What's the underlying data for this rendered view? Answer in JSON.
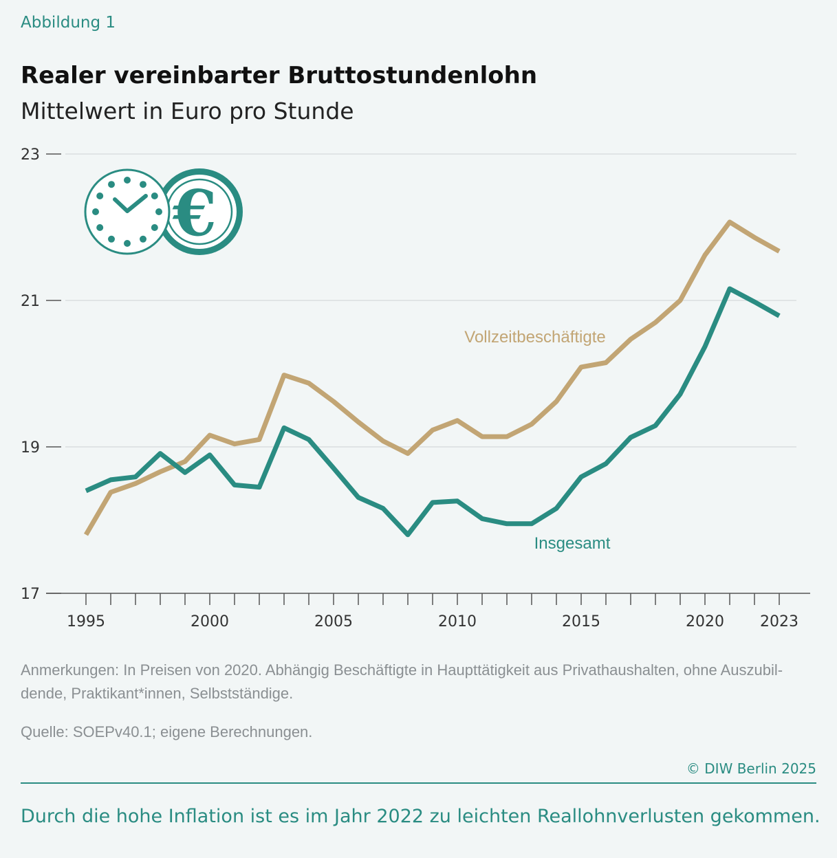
{
  "header": {
    "figure_label": "Abbildung 1",
    "title": "Realer vereinbarter Bruttostundenlohn",
    "subtitle": "Mittelwert in Euro pro Stunde"
  },
  "icon": {
    "name": "clock-euro-icon",
    "colors": {
      "stroke": "#2a8c82",
      "fill": "#ffffff"
    }
  },
  "colors": {
    "insgesamt": "#2a8c82",
    "vollzeit": "#c2a574",
    "grid": "#d6dadb",
    "axis": "#555555"
  },
  "chart_data": {
    "type": "line",
    "title": "Realer vereinbarter Bruttostundenlohn",
    "subtitle": "Mittelwert in Euro pro Stunde",
    "x": [
      1995,
      1996,
      1997,
      1998,
      1999,
      2000,
      2001,
      2002,
      2003,
      2004,
      2005,
      2006,
      2007,
      2008,
      2009,
      2010,
      2011,
      2012,
      2013,
      2014,
      2015,
      2016,
      2017,
      2018,
      2019,
      2020,
      2021,
      2022,
      2023
    ],
    "xticks": [
      1995,
      2000,
      2005,
      2010,
      2015,
      2020,
      2023
    ],
    "yticks": [
      17,
      19,
      21,
      23
    ],
    "ylim": [
      17,
      23
    ],
    "xlim": [
      1995,
      2024.2
    ],
    "grid": true,
    "series": [
      {
        "name": "Vollzeitbeschäftigte",
        "color": "#c2a574",
        "values": [
          17.8,
          18.38,
          18.5,
          18.66,
          18.8,
          19.16,
          19.04,
          19.1,
          19.98,
          19.87,
          19.62,
          19.34,
          19.08,
          18.91,
          19.23,
          19.36,
          19.14,
          19.14,
          19.31,
          19.62,
          20.09,
          20.15,
          20.47,
          20.7,
          21.0,
          21.62,
          22.07,
          21.86,
          21.67
        ]
      },
      {
        "name": "Insgesamt",
        "color": "#2a8c82",
        "values": [
          18.4,
          18.55,
          18.59,
          18.91,
          18.65,
          18.89,
          18.48,
          18.45,
          19.26,
          19.1,
          18.71,
          18.31,
          18.16,
          17.8,
          18.24,
          18.26,
          18.02,
          17.95,
          17.95,
          18.16,
          18.59,
          18.77,
          19.13,
          19.29,
          19.72,
          20.37,
          21.16,
          20.98,
          20.79
        ]
      }
    ]
  },
  "notes": {
    "remarks_line1": "Anmerkungen: In Preisen von 2020. Abhängig Beschäftigte in Haupttätigkeit aus Privathaushalten, ohne Auszubil-",
    "remarks_line2": "dende, Praktikant*innen, Selbstständige.",
    "source": "Quelle: SOEPv40.1; eigene Berechnungen.",
    "copyright": "© DIW Berlin 2025"
  },
  "conclusion": "Durch die hohe Inflation ist es im Jahr 2022 zu leichten Reallohnverlusten gekommen."
}
